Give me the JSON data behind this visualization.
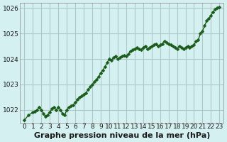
{
  "title": "Graphe pression niveau de la mer (hPa)",
  "background_color": "#d4f0f0",
  "grid_color": "#b0c8c8",
  "line_color": "#1a5c1a",
  "marker_color": "#1a5c1a",
  "ylim": [
    1021.5,
    1026.2
  ],
  "xlim": [
    -0.5,
    23.5
  ],
  "yticks": [
    1022,
    1023,
    1024,
    1025,
    1026
  ],
  "xticks": [
    0,
    1,
    2,
    3,
    4,
    5,
    6,
    7,
    8,
    9,
    10,
    11,
    12,
    13,
    14,
    15,
    16,
    17,
    18,
    19,
    20,
    21,
    22,
    23
  ],
  "x": [
    0,
    0.5,
    1,
    1.25,
    1.5,
    1.75,
    2,
    2.25,
    2.5,
    2.75,
    3,
    3.25,
    3.5,
    3.75,
    4,
    4.25,
    4.5,
    4.75,
    5,
    5.25,
    5.5,
    5.75,
    6,
    6.25,
    6.5,
    6.75,
    7,
    7.25,
    7.5,
    7.75,
    8,
    8.25,
    8.5,
    8.75,
    9,
    9.25,
    9.5,
    9.75,
    10,
    10.25,
    10.5,
    10.75,
    11,
    11.25,
    11.5,
    11.75,
    12,
    12.25,
    12.5,
    12.75,
    13,
    13.25,
    13.5,
    13.75,
    14,
    14.25,
    14.5,
    14.75,
    15,
    15.25,
    15.5,
    15.75,
    16,
    16.25,
    16.5,
    16.75,
    17,
    17.25,
    17.5,
    17.75,
    18,
    18.25,
    18.5,
    18.75,
    19,
    19.25,
    19.5,
    19.75,
    20,
    20.25,
    20.5,
    20.75,
    21,
    21.25,
    21.5,
    21.75,
    22,
    22.25,
    22.5,
    22.75,
    23
  ],
  "y": [
    1021.6,
    1021.8,
    1021.9,
    1021.95,
    1022.0,
    1022.1,
    1022.0,
    1021.85,
    1021.75,
    1021.8,
    1021.9,
    1022.05,
    1022.1,
    1022.0,
    1022.1,
    1022.0,
    1021.85,
    1021.8,
    1022.0,
    1022.1,
    1022.15,
    1022.2,
    1022.3,
    1022.4,
    1022.5,
    1022.55,
    1022.6,
    1022.65,
    1022.8,
    1022.9,
    1023.0,
    1023.1,
    1023.2,
    1023.3,
    1023.45,
    1023.55,
    1023.7,
    1023.85,
    1024.0,
    1023.95,
    1024.05,
    1024.1,
    1024.0,
    1024.05,
    1024.1,
    1024.15,
    1024.1,
    1024.2,
    1024.3,
    1024.35,
    1024.4,
    1024.45,
    1024.4,
    1024.35,
    1024.45,
    1024.5,
    1024.4,
    1024.45,
    1024.5,
    1024.55,
    1024.6,
    1024.5,
    1024.55,
    1024.6,
    1024.7,
    1024.65,
    1024.6,
    1024.55,
    1024.5,
    1024.45,
    1024.4,
    1024.5,
    1024.45,
    1024.4,
    1024.45,
    1024.5,
    1024.45,
    1024.5,
    1024.55,
    1024.7,
    1024.75,
    1025.0,
    1025.1,
    1025.3,
    1025.5,
    1025.6,
    1025.7,
    1025.85,
    1025.95,
    1026.0,
    1026.05
  ],
  "title_fontsize": 8,
  "tick_fontsize": 6.5,
  "marker_size": 2.5,
  "line_width": 1.0
}
